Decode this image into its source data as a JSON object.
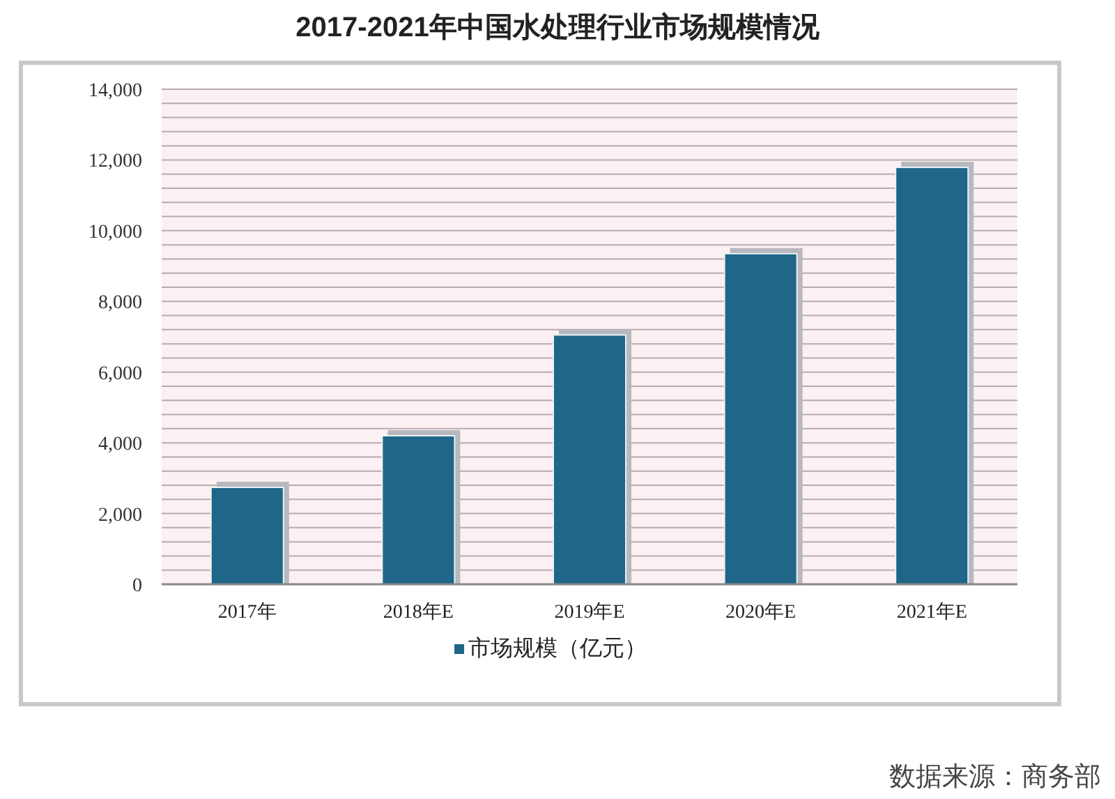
{
  "chart_data": {
    "type": "bar",
    "title": "2017-2021年中国水处理行业市场规模情况",
    "categories": [
      "2017年",
      "2018年E",
      "2019年E",
      "2020年E",
      "2021年E"
    ],
    "series": [
      {
        "name": "市场规模（亿元）",
        "color": "#1f6688",
        "values": [
          2740,
          4200,
          7050,
          9350,
          11790
        ]
      }
    ],
    "ylim": [
      0,
      14000
    ],
    "yticks": [
      0,
      {
        "value": 400,
        "label": null
      },
      {
        "value": 800,
        "label": null
      },
      {
        "value": 1200,
        "label": null
      },
      {
        "value": 1600,
        "label": null
      },
      {
        "value": 2000,
        "label": "2,000"
      },
      {
        "value": 2400,
        "label": null
      },
      {
        "value": 2800,
        "label": null
      },
      {
        "value": 3200,
        "label": null
      },
      {
        "value": 3600,
        "label": null
      },
      {
        "value": 4000,
        "label": "4,000"
      },
      {
        "value": 4400,
        "label": null
      },
      {
        "value": 4800,
        "label": null
      },
      {
        "value": 5200,
        "label": null
      },
      {
        "value": 5600,
        "label": null
      },
      {
        "value": 6000,
        "label": "6,000"
      },
      {
        "value": 6400,
        "label": null
      },
      {
        "value": 6800,
        "label": null
      },
      {
        "value": 7200,
        "label": null
      },
      {
        "value": 7600,
        "label": null
      },
      {
        "value": 8000,
        "label": "8,000"
      },
      {
        "value": 8400,
        "label": null
      },
      {
        "value": 8800,
        "label": null
      },
      {
        "value": 9200,
        "label": null
      },
      {
        "value": 9600,
        "label": null
      },
      {
        "value": 10000,
        "label": "10,000"
      },
      {
        "value": 10400,
        "label": null
      },
      {
        "value": 10800,
        "label": null
      },
      {
        "value": 11200,
        "label": null
      },
      {
        "value": 11600,
        "label": null
      },
      {
        "value": 12000,
        "label": "12,000"
      },
      {
        "value": 12400,
        "label": null
      },
      {
        "value": 12800,
        "label": null
      },
      {
        "value": 13200,
        "label": null
      },
      {
        "value": 13600,
        "label": null
      },
      {
        "value": 14000,
        "label": "14,000"
      }
    ],
    "grid": "y",
    "legend": "bottom",
    "annotations": [
      "数据来源：商务部"
    ]
  }
}
